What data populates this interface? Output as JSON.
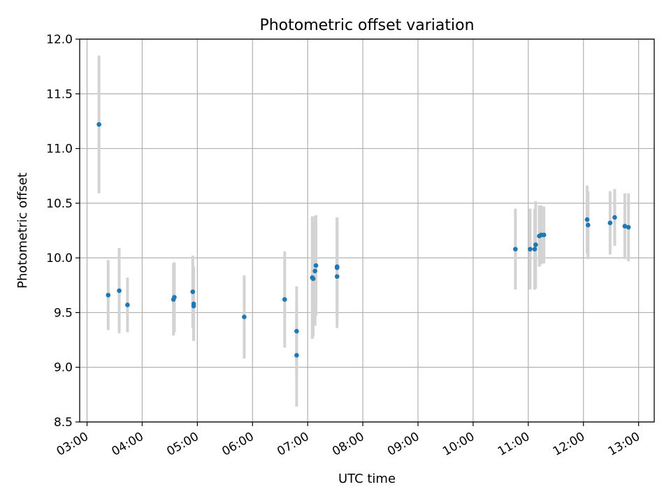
{
  "chart_data": {
    "type": "scatter",
    "title": "Photometric offset variation",
    "xlabel": "UTC time",
    "ylabel": "Photometric offset",
    "xlim": [
      "02:52",
      "13:17"
    ],
    "ylim": [
      8.5,
      12.0
    ],
    "x_ticks": [
      "03:00",
      "04:00",
      "05:00",
      "06:00",
      "07:00",
      "08:00",
      "09:00",
      "10:00",
      "11:00",
      "12:00",
      "13:00"
    ],
    "y_ticks": [
      "8.5",
      "9.0",
      "9.5",
      "10.0",
      "10.5",
      "11.0",
      "11.5",
      "12.0"
    ],
    "grid": true,
    "point_color": "#1f77b4",
    "errorbar_color": "#d3d3d3",
    "points": [
      {
        "x": "03:13",
        "y": 11.22,
        "err": 0.63
      },
      {
        "x": "03:23",
        "y": 9.66,
        "err": 0.32
      },
      {
        "x": "03:35",
        "y": 9.7,
        "err": 0.39
      },
      {
        "x": "03:44",
        "y": 9.57,
        "err": 0.25
      },
      {
        "x": "04:34",
        "y": 9.62,
        "err": 0.33
      },
      {
        "x": "04:35",
        "y": 9.64,
        "err": 0.32
      },
      {
        "x": "04:55",
        "y": 9.69,
        "err": 0.33
      },
      {
        "x": "04:56",
        "y": 9.58,
        "err": 0.34
      },
      {
        "x": "04:56",
        "y": 9.56,
        "err": 0.31
      },
      {
        "x": "05:51",
        "y": 9.46,
        "err": 0.38
      },
      {
        "x": "06:35",
        "y": 9.62,
        "err": 0.44
      },
      {
        "x": "06:48",
        "y": 9.33,
        "err": 0.41
      },
      {
        "x": "06:48",
        "y": 9.11,
        "err": 0.47
      },
      {
        "x": "07:05",
        "y": 9.82,
        "err": 0.56
      },
      {
        "x": "07:06",
        "y": 9.81,
        "err": 0.53
      },
      {
        "x": "07:08",
        "y": 9.88,
        "err": 0.5
      },
      {
        "x": "07:09",
        "y": 9.93,
        "err": 0.46
      },
      {
        "x": "07:32",
        "y": 9.91,
        "err": 0.46
      },
      {
        "x": "07:32",
        "y": 9.92,
        "err": 0.45
      },
      {
        "x": "07:32",
        "y": 9.83,
        "err": 0.47
      },
      {
        "x": "10:46",
        "y": 10.08,
        "err": 0.37
      },
      {
        "x": "11:02",
        "y": 10.08,
        "err": 0.37
      },
      {
        "x": "11:07",
        "y": 10.08,
        "err": 0.37
      },
      {
        "x": "11:08",
        "y": 10.12,
        "err": 0.4
      },
      {
        "x": "11:12",
        "y": 10.2,
        "err": 0.28
      },
      {
        "x": "11:14",
        "y": 10.21,
        "err": 0.27
      },
      {
        "x": "11:17",
        "y": 10.21,
        "err": 0.26
      },
      {
        "x": "12:04",
        "y": 10.35,
        "err": 0.31
      },
      {
        "x": "12:05",
        "y": 10.3,
        "err": 0.31
      },
      {
        "x": "12:29",
        "y": 10.32,
        "err": 0.29
      },
      {
        "x": "12:34",
        "y": 10.37,
        "err": 0.26
      },
      {
        "x": "12:45",
        "y": 10.29,
        "err": 0.3
      },
      {
        "x": "12:49",
        "y": 10.28,
        "err": 0.31
      }
    ]
  }
}
